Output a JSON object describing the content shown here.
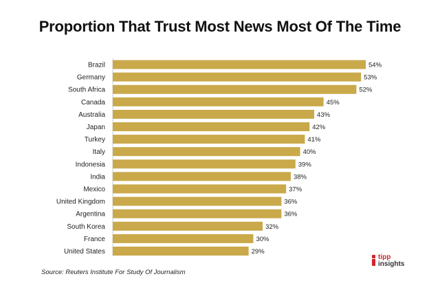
{
  "chart_data": {
    "type": "bar",
    "orientation": "horizontal",
    "title": "Proportion That Trust Most News Most Of The Time",
    "categories": [
      "Brazil",
      "Germany",
      "South Africa",
      "Canada",
      "Australia",
      "Japan",
      "Turkey",
      "Italy",
      "Indonesia",
      "India",
      "Mexico",
      "United Kingdom",
      "Argentina",
      "South Korea",
      "France",
      "United States"
    ],
    "values": [
      54,
      53,
      52,
      45,
      43,
      42,
      41,
      40,
      39,
      38,
      37,
      36,
      36,
      32,
      30,
      29
    ],
    "value_labels": [
      "54%",
      "53%",
      "52%",
      "45%",
      "43%",
      "42%",
      "41%",
      "40%",
      "39%",
      "38%",
      "37%",
      "36%",
      "36%",
      "32%",
      "30%",
      "29%"
    ],
    "xlim": [
      0,
      54
    ],
    "grid": false,
    "bar_color": "#c9a94a"
  },
  "footer": {
    "source": "Source:  Reuters Institute For Study Of Journalism",
    "logo_line1": "tipp",
    "logo_line2": "insights"
  }
}
